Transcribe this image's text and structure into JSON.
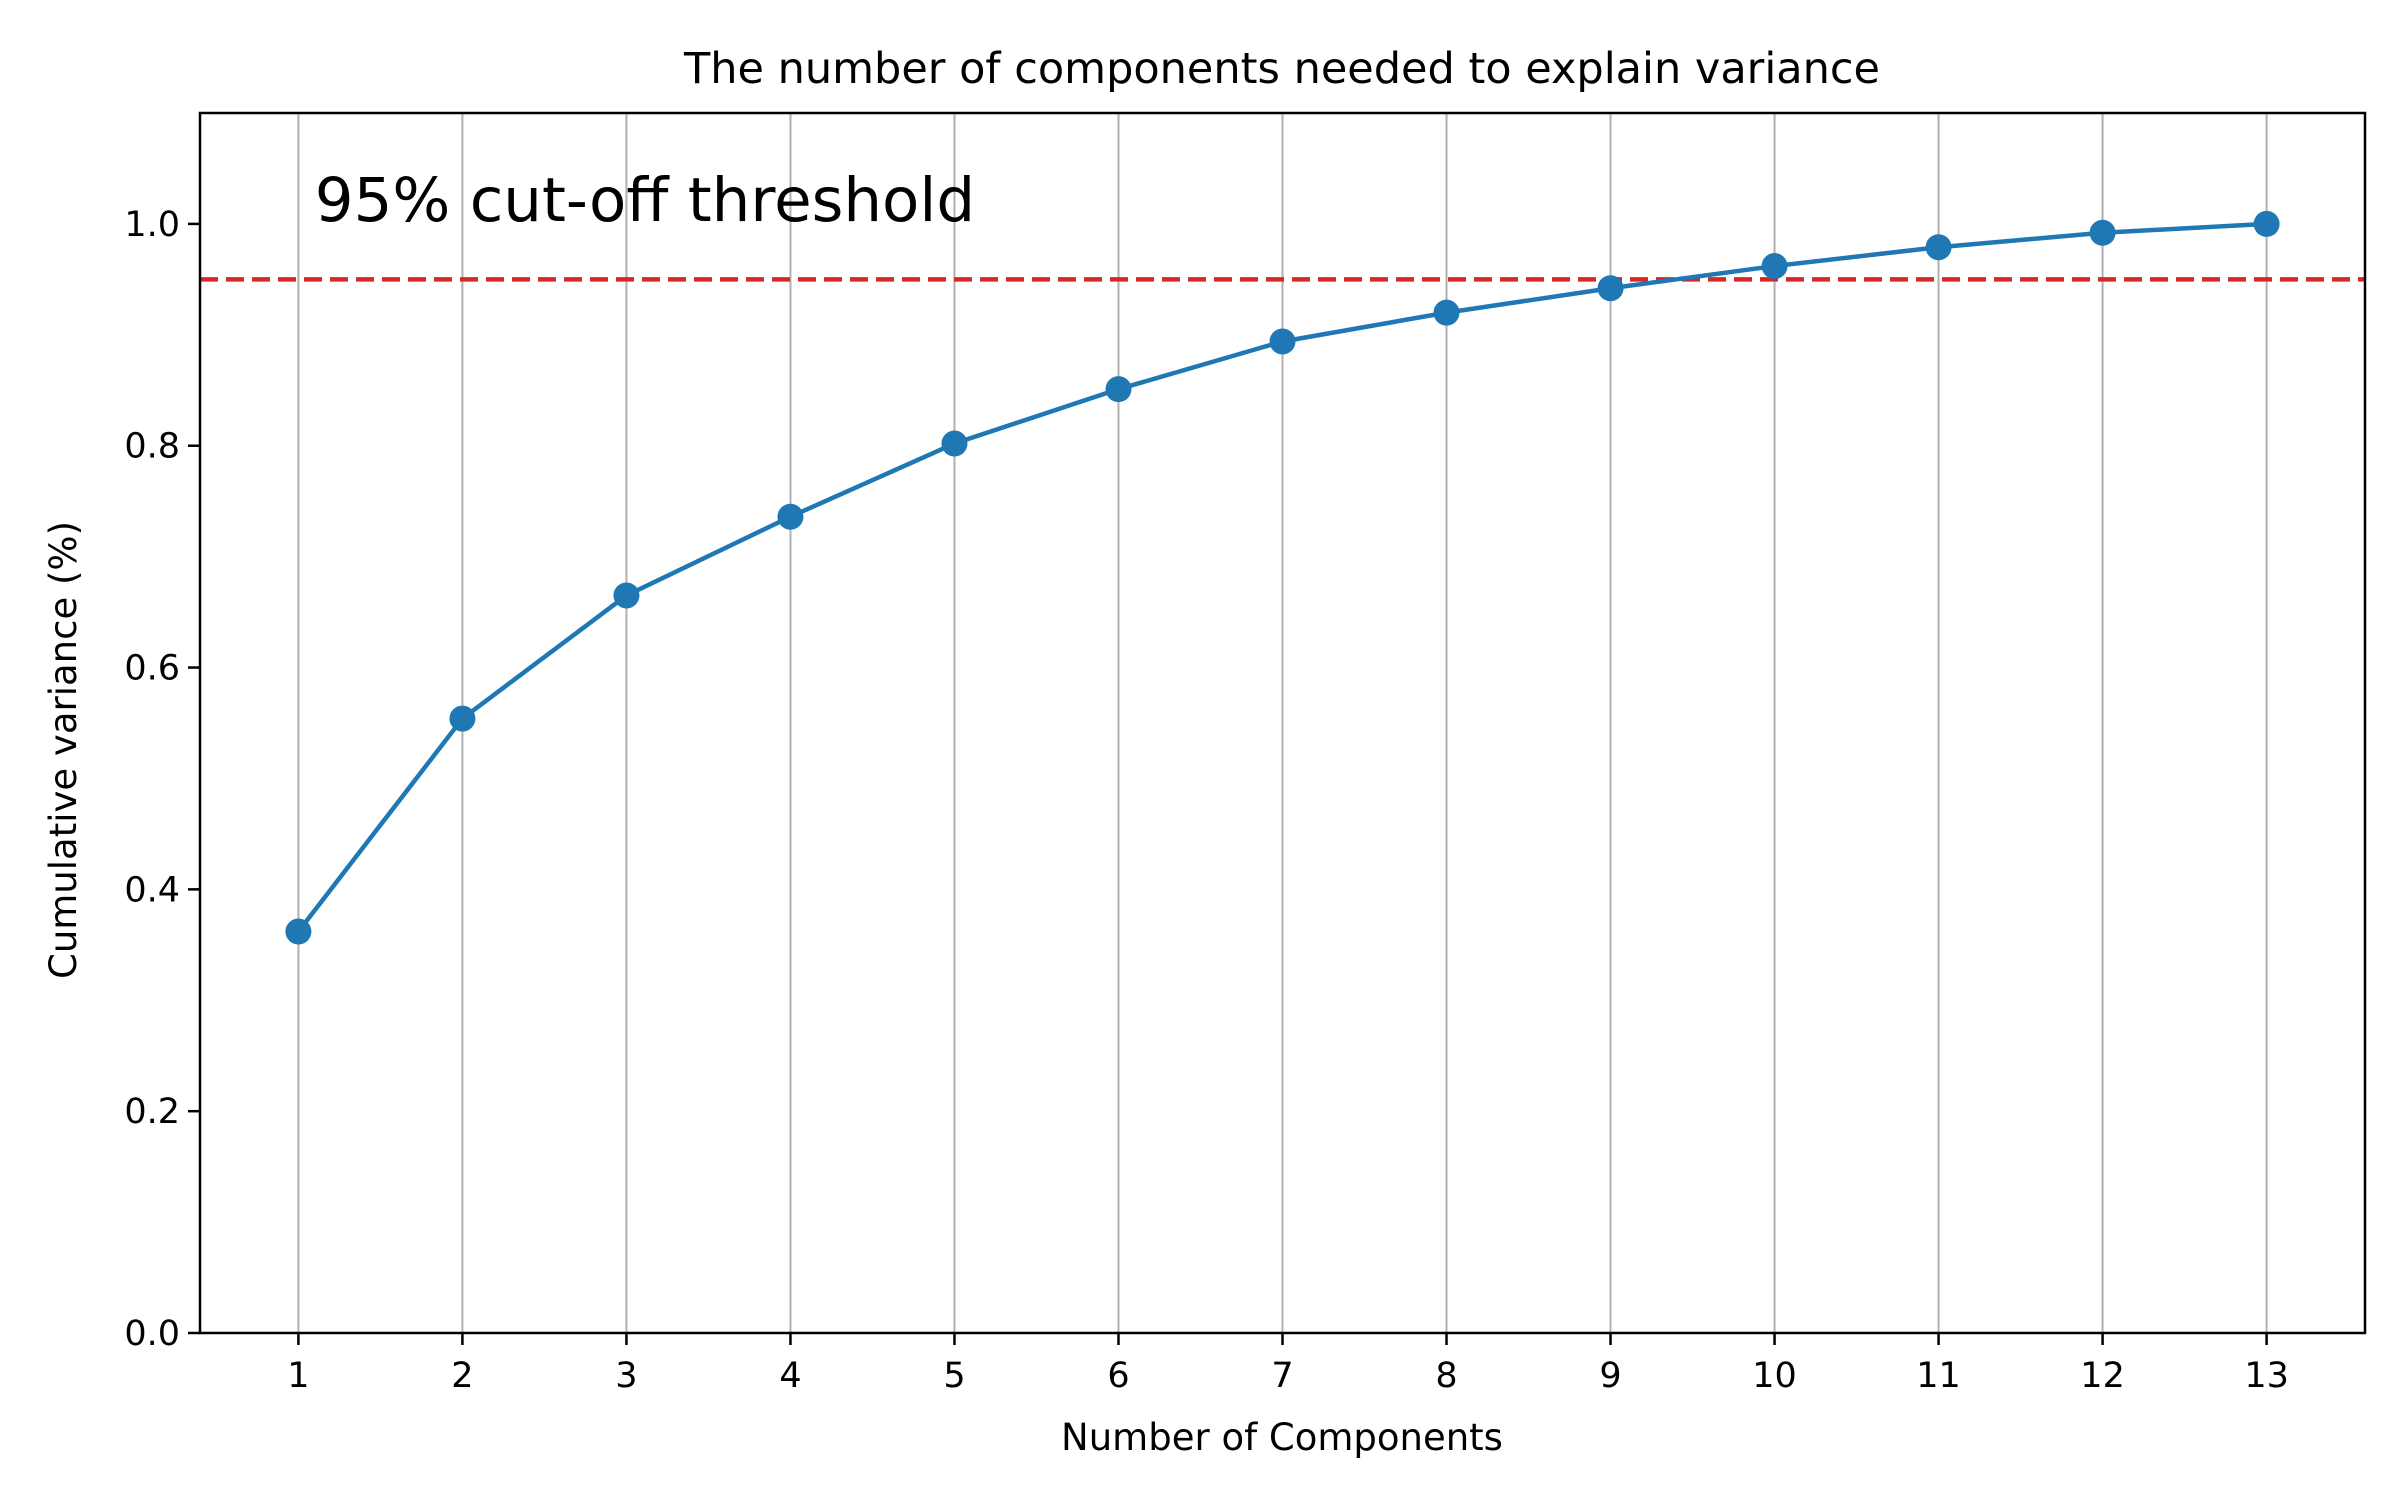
{
  "chart_data": {
    "type": "line",
    "title": "The number of components needed to explain variance",
    "xlabel": "Number of Components",
    "ylabel": "Cumulative variance (%)",
    "x": [
      1,
      2,
      3,
      4,
      5,
      6,
      7,
      8,
      9,
      10,
      11,
      12,
      13
    ],
    "series": [
      {
        "values": [
          0.362,
          0.554,
          0.665,
          0.736,
          0.802,
          0.851,
          0.894,
          0.92,
          0.942,
          0.962,
          0.979,
          0.992,
          1.0
        ],
        "color": "#1f77b4",
        "marker": "circle"
      }
    ],
    "xlim": [
      0.4,
      13.6
    ],
    "ylim": [
      0.0,
      1.1
    ],
    "xticks": [
      1,
      2,
      3,
      4,
      5,
      6,
      7,
      8,
      9,
      10,
      11,
      12,
      13
    ],
    "xtick_labels": [
      "1",
      "2",
      "3",
      "4",
      "5",
      "6",
      "7",
      "8",
      "9",
      "10",
      "11",
      "12",
      "13"
    ],
    "yticks": [
      0.0,
      0.2,
      0.4,
      0.6,
      0.8,
      1.0
    ],
    "ytick_labels": [
      "0.0",
      "0.2",
      "0.4",
      "0.6",
      "0.8",
      "1.0"
    ],
    "grid": "vertical",
    "threshold": {
      "value": 0.95,
      "color": "#d62728",
      "style": "dashed"
    },
    "annotations": [
      {
        "text": "95% cut-off threshold",
        "x": 1.1,
        "y": 1.0
      }
    ]
  }
}
